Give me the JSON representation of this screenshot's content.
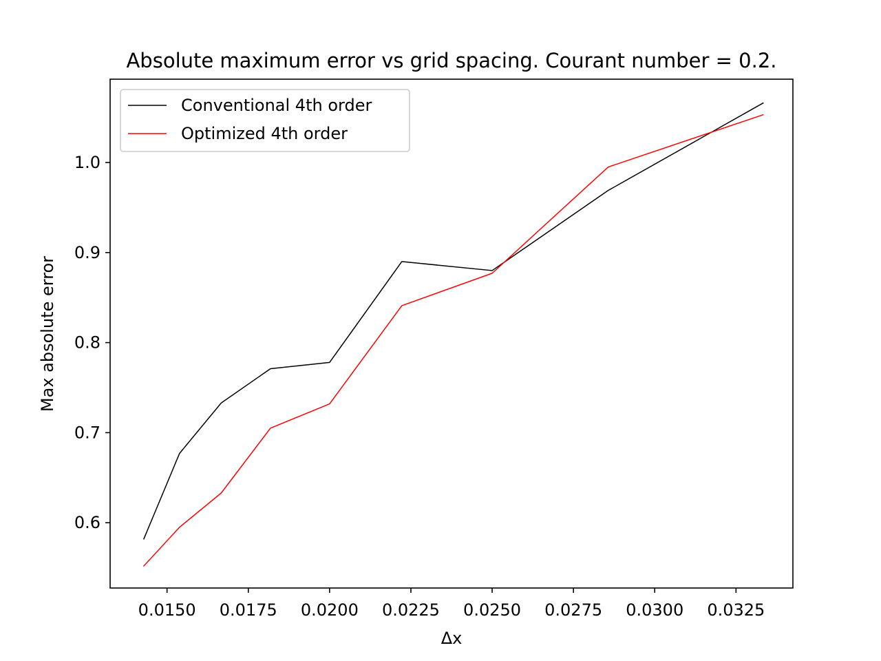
{
  "chart_data": {
    "type": "line",
    "title": "Absolute maximum error vs grid spacing. Courant number = 0.2.",
    "xlabel": "Δx",
    "ylabel": "Max absolute error",
    "xlim": [
      0.01325,
      0.03425
    ],
    "ylim": [
      0.5275,
      1.0925
    ],
    "xticks": [
      0.015,
      0.0175,
      0.02,
      0.0225,
      0.025,
      0.0275,
      0.03,
      0.0325
    ],
    "xtick_labels": [
      "0.0150",
      "0.0175",
      "0.0200",
      "0.0225",
      "0.0250",
      "0.0275",
      "0.0300",
      "0.0325"
    ],
    "yticks": [
      0.6,
      0.7,
      0.8,
      0.9,
      1.0
    ],
    "ytick_labels": [
      "0.6",
      "0.7",
      "0.8",
      "0.9",
      "1.0"
    ],
    "grid": false,
    "legend_position": "top-left",
    "series": [
      {
        "name": "Conventional 4th order",
        "color": "#000000",
        "x": [
          0.014286,
          0.015385,
          0.016667,
          0.018182,
          0.02,
          0.022222,
          0.025,
          0.028571,
          0.033333
        ],
        "y": [
          0.582,
          0.677,
          0.733,
          0.771,
          0.778,
          0.89,
          0.88,
          0.969,
          1.066
        ]
      },
      {
        "name": "Optimized 4th order",
        "color": "#ff0000",
        "x": [
          0.014286,
          0.015385,
          0.016667,
          0.018182,
          0.02,
          0.022222,
          0.025,
          0.028571,
          0.033333
        ],
        "y": [
          0.552,
          0.595,
          0.633,
          0.705,
          0.732,
          0.841,
          0.877,
          0.995,
          1.053
        ]
      }
    ]
  }
}
